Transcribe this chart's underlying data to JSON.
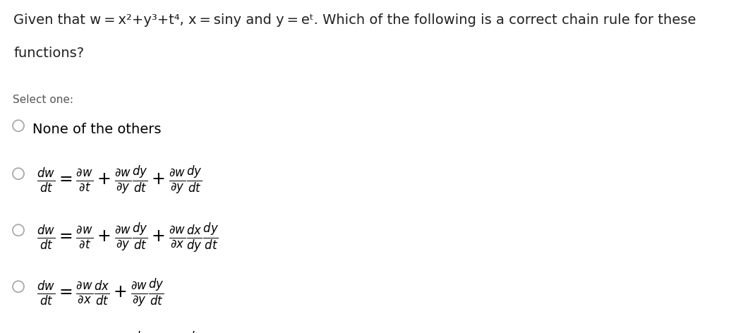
{
  "bg_color_header": "#eef2f8",
  "bg_color_body": "#ffffff",
  "header_text_line1": "Given that w = x²+y³+t⁴, x = siny and y = eᵗ. Which of the following is a correct chain rule for these",
  "header_text_line2": "functions?",
  "select_one": "Select one:",
  "option0": "None of the others",
  "math_options": [
    "$\\frac{dw}{dt} = \\frac{\\partial w}{\\partial t} + \\frac{\\partial w}{\\partial y}\\frac{dy}{dt} + \\frac{\\partial w}{\\partial y}\\frac{dy}{dt}$",
    "$\\frac{dw}{dt} = \\frac{\\partial w}{\\partial t} + \\frac{\\partial w}{\\partial y}\\frac{dy}{dt} + \\frac{\\partial w}{\\partial x}\\frac{dx}{dy}\\frac{dy}{dt}$",
    "$\\frac{dw}{dt} = \\frac{\\partial w}{\\partial x}\\frac{dx}{dt} + \\frac{\\partial w}{\\partial y}\\frac{dy}{dt}$",
    "$\\frac{dw}{dt} = \\frac{\\partial w}{\\partial t} + \\frac{\\partial w}{\\partial y}\\frac{dy}{dt} + \\frac{\\partial w}{\\partial x}\\frac{dy}{dt}$"
  ],
  "header_fontsize": 14,
  "select_fontsize": 11,
  "option0_fontsize": 14,
  "math_fontsize": 17,
  "circle_color": "#aaaaaa",
  "text_color": "#333333",
  "header_text_color": "#222222"
}
